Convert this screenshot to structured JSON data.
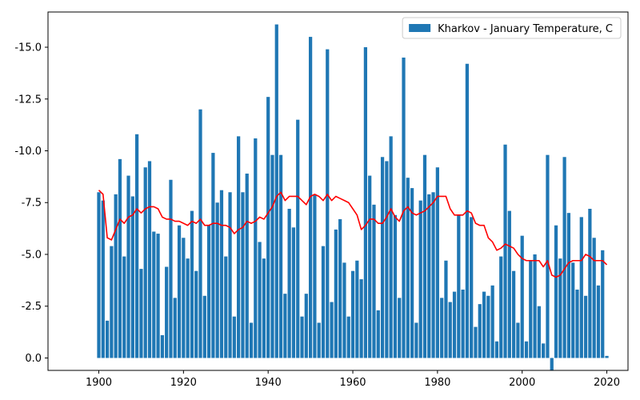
{
  "chart_data": {
    "type": "bar",
    "title": "",
    "xlabel": "",
    "ylabel": "",
    "y_inverted": true,
    "xlim": [
      1888,
      2025
    ],
    "ylim": [
      0.6,
      -16.7
    ],
    "x_ticks": [
      1900,
      1920,
      1940,
      1960,
      1980,
      2000,
      2020
    ],
    "y_ticks": [
      -15.0,
      -12.5,
      -10.0,
      -7.5,
      -5.0,
      -2.5,
      0.0
    ],
    "y_tick_labels": [
      "-15.0",
      "-12.5",
      "-10.0",
      "-7.5",
      "-5.0",
      "-2.5",
      "0.0"
    ],
    "legend_position": "top-right",
    "colors": {
      "bars": "#1f77b4",
      "line": "#ff0000"
    },
    "series": [
      {
        "name": "Kharkov - January Temperature, C",
        "kind": "bar",
        "x": [
          1900,
          1901,
          1902,
          1903,
          1904,
          1905,
          1906,
          1907,
          1908,
          1909,
          1910,
          1911,
          1912,
          1913,
          1914,
          1915,
          1916,
          1917,
          1918,
          1919,
          1920,
          1921,
          1922,
          1923,
          1924,
          1925,
          1926,
          1927,
          1928,
          1929,
          1930,
          1931,
          1932,
          1933,
          1934,
          1935,
          1936,
          1937,
          1938,
          1939,
          1940,
          1941,
          1942,
          1943,
          1944,
          1945,
          1946,
          1947,
          1948,
          1949,
          1950,
          1951,
          1952,
          1953,
          1954,
          1955,
          1956,
          1957,
          1958,
          1959,
          1960,
          1961,
          1962,
          1963,
          1964,
          1965,
          1966,
          1967,
          1968,
          1969,
          1970,
          1971,
          1972,
          1973,
          1974,
          1975,
          1976,
          1977,
          1978,
          1979,
          1980,
          1981,
          1982,
          1983,
          1984,
          1985,
          1986,
          1987,
          1988,
          1989,
          1990,
          1991,
          1992,
          1993,
          1994,
          1995,
          1996,
          1997,
          1998,
          1999,
          2000,
          2001,
          2002,
          2003,
          2004,
          2005,
          2006,
          2007,
          2008,
          2009,
          2010,
          2011,
          2012,
          2013,
          2014,
          2015,
          2016,
          2017,
          2018,
          2019,
          2020
        ],
        "values": [
          -8.0,
          -7.6,
          -1.8,
          -5.4,
          -7.9,
          -9.6,
          -4.9,
          -8.8,
          -7.8,
          -10.8,
          -4.3,
          -9.2,
          -9.5,
          -6.1,
          -6.0,
          -1.1,
          -4.4,
          -8.6,
          -2.9,
          -6.4,
          -5.8,
          -4.8,
          -7.1,
          -4.2,
          -12.0,
          -3.0,
          -6.4,
          -9.9,
          -7.5,
          -8.1,
          -4.9,
          -8.0,
          -2.0,
          -10.7,
          -8.0,
          -8.9,
          -1.7,
          -10.6,
          -5.6,
          -4.8,
          -12.6,
          -9.8,
          -16.1,
          -9.8,
          -3.1,
          -7.2,
          -6.3,
          -11.5,
          -2.0,
          -3.1,
          -15.5,
          -7.9,
          -1.7,
          -5.4,
          -14.9,
          -2.7,
          -6.2,
          -6.7,
          -4.6,
          -2.0,
          -4.2,
          -4.7,
          -3.8,
          -15.0,
          -8.8,
          -7.4,
          -2.3,
          -9.7,
          -9.5,
          -10.7,
          -6.9,
          -2.9,
          -14.5,
          -8.7,
          -8.2,
          -1.7,
          -7.6,
          -9.8,
          -7.9,
          -8.0,
          -9.2,
          -2.9,
          -4.7,
          -2.7,
          -3.2,
          -6.9,
          -3.3,
          -14.2,
          -6.8,
          -1.5,
          -2.6,
          -3.2,
          -3.0,
          -3.5,
          -0.8,
          -4.9,
          -10.3,
          -7.1,
          -4.2,
          -1.7,
          -5.9,
          -0.8,
          -4.7,
          -5.0,
          -2.5,
          -0.7,
          -9.8,
          0.6,
          -6.4,
          -4.8,
          -9.7,
          -7.0,
          -4.6,
          -3.3,
          -6.8,
          -3.0,
          -7.2,
          -5.8,
          -3.5,
          -5.2,
          -0.1
        ]
      },
      {
        "kind": "line",
        "x": [
          1900,
          1901,
          1902,
          1903,
          1904,
          1905,
          1906,
          1907,
          1908,
          1909,
          1910,
          1911,
          1912,
          1913,
          1914,
          1915,
          1916,
          1917,
          1918,
          1919,
          1920,
          1921,
          1922,
          1923,
          1924,
          1925,
          1926,
          1927,
          1928,
          1929,
          1930,
          1931,
          1932,
          1933,
          1934,
          1935,
          1936,
          1937,
          1938,
          1939,
          1940,
          1941,
          1942,
          1943,
          1944,
          1945,
          1946,
          1947,
          1948,
          1949,
          1950,
          1951,
          1952,
          1953,
          1954,
          1955,
          1956,
          1957,
          1958,
          1959,
          1960,
          1961,
          1962,
          1963,
          1964,
          1965,
          1966,
          1967,
          1968,
          1969,
          1970,
          1971,
          1972,
          1973,
          1974,
          1975,
          1976,
          1977,
          1978,
          1979,
          1980,
          1981,
          1982,
          1983,
          1984,
          1985,
          1986,
          1987,
          1988,
          1989,
          1990,
          1991,
          1992,
          1993,
          1994,
          1995,
          1996,
          1997,
          1998,
          1999,
          2000,
          2001,
          2002,
          2003,
          2004,
          2005,
          2006,
          2007,
          2008,
          2009,
          2010,
          2011,
          2012,
          2013,
          2014,
          2015,
          2016,
          2017,
          2018,
          2019,
          2020
        ],
        "values": [
          -8.1,
          -7.9,
          -5.8,
          -5.7,
          -6.2,
          -6.7,
          -6.5,
          -6.8,
          -6.9,
          -7.2,
          -7.0,
          -7.2,
          -7.3,
          -7.3,
          -7.2,
          -6.8,
          -6.7,
          -6.7,
          -6.6,
          -6.6,
          -6.5,
          -6.4,
          -6.6,
          -6.5,
          -6.7,
          -6.4,
          -6.4,
          -6.5,
          -6.5,
          -6.4,
          -6.4,
          -6.3,
          -6.0,
          -6.2,
          -6.3,
          -6.6,
          -6.5,
          -6.6,
          -6.8,
          -6.7,
          -7.0,
          -7.3,
          -7.8,
          -8.0,
          -7.6,
          -7.8,
          -7.8,
          -7.8,
          -7.6,
          -7.4,
          -7.8,
          -7.9,
          -7.8,
          -7.6,
          -7.9,
          -7.6,
          -7.8,
          -7.7,
          -7.6,
          -7.5,
          -7.2,
          -6.9,
          -6.2,
          -6.4,
          -6.7,
          -6.7,
          -6.5,
          -6.5,
          -6.8,
          -7.2,
          -6.8,
          -6.6,
          -7.1,
          -7.3,
          -7.0,
          -6.9,
          -7.0,
          -7.1,
          -7.3,
          -7.5,
          -7.8,
          -7.8,
          -7.8,
          -7.2,
          -6.9,
          -6.9,
          -6.9,
          -7.1,
          -7.0,
          -6.5,
          -6.4,
          -6.4,
          -5.8,
          -5.6,
          -5.2,
          -5.3,
          -5.5,
          -5.4,
          -5.3,
          -5.0,
          -4.8,
          -4.7,
          -4.7,
          -4.7,
          -4.7,
          -4.4,
          -4.7,
          -4.0,
          -3.9,
          -4.0,
          -4.3,
          -4.6,
          -4.7,
          -4.7,
          -4.7,
          -5.0,
          -4.9,
          -4.7,
          -4.7,
          -4.7,
          -4.5
        ]
      }
    ]
  }
}
